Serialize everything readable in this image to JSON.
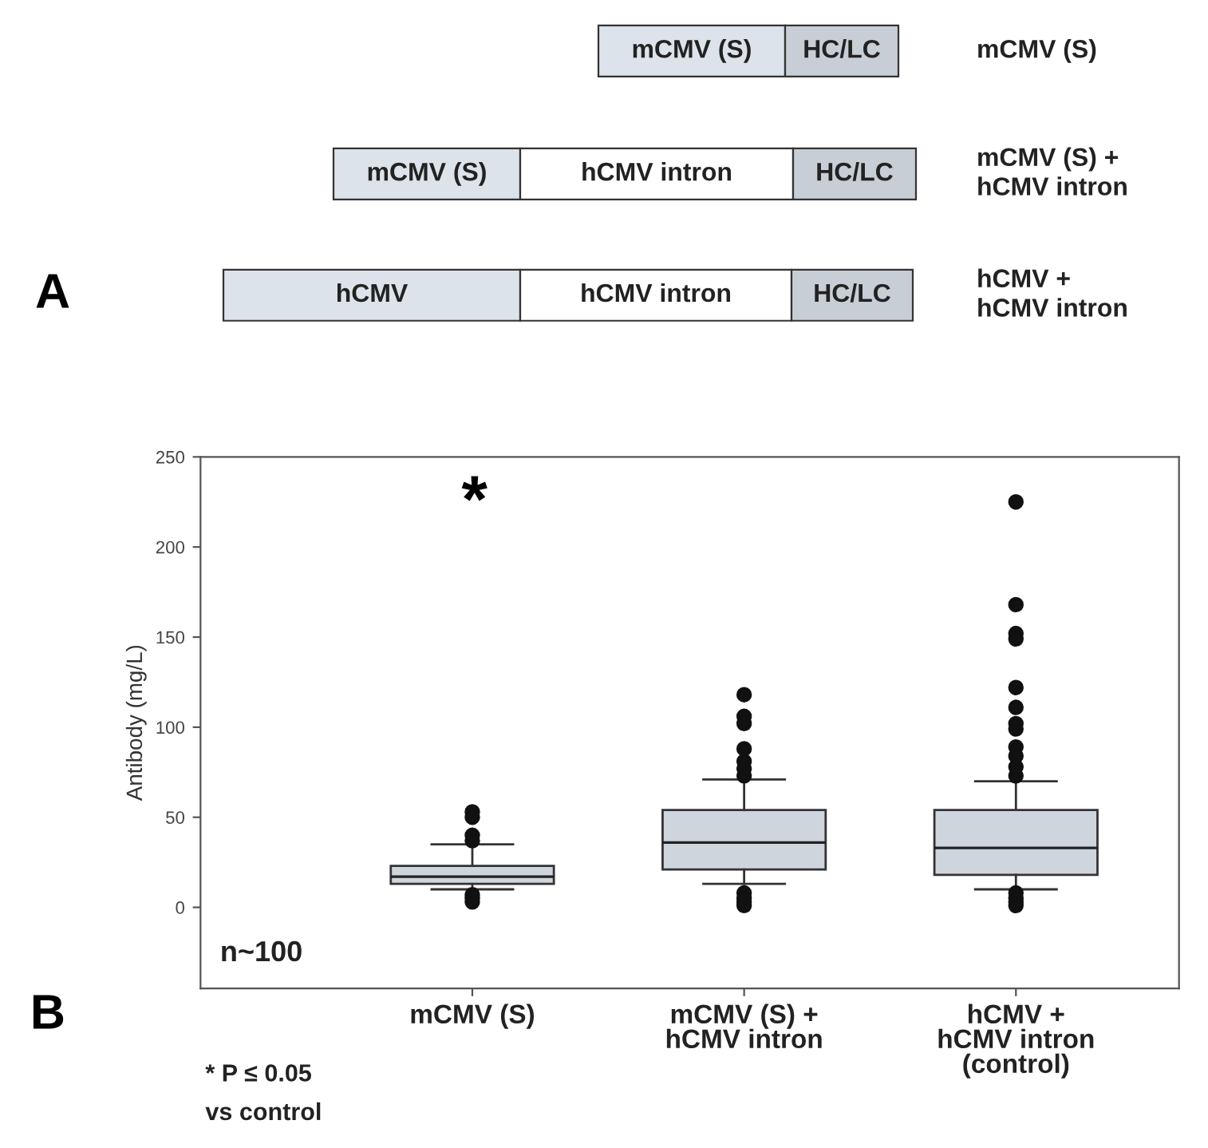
{
  "chart_data": [
    {
      "type": "other",
      "title": "A",
      "categories": [
        "mCMV (S)",
        "mCMV (S) +\nhCMV intron",
        "hCMV +\nhCMV intron"
      ],
      "annotations": [
        "mCMV (S)",
        "HC/LC",
        "mCMV (S)",
        "hCMV intron",
        "HC/LC",
        "hCMV",
        "hCMV intron",
        "HC/LC"
      ]
    },
    {
      "type": "box",
      "title": "B",
      "ylabel": "Antibody (mg/L)",
      "categories": [
        "mCMV (S)",
        "mCMV (S) +\nhCMV intron",
        "hCMV +\nhCMV intron\n(control)"
      ],
      "color": "#cfd5dc",
      "boxes": [
        {
          "low": 10,
          "q1": 13,
          "median": 17,
          "q3": 23,
          "high": 35,
          "outliers": [
            53,
            50,
            40,
            37,
            7,
            5,
            3
          ]
        },
        {
          "low": 13,
          "q1": 21,
          "median": 36,
          "q3": 54,
          "high": 71,
          "outliers": [
            118,
            106,
            102,
            88,
            81,
            77,
            73,
            8,
            5,
            3,
            1
          ]
        },
        {
          "low": 10,
          "q1": 18,
          "median": 33,
          "q3": 54,
          "high": 70,
          "outliers": [
            225,
            168,
            152,
            149,
            122,
            111,
            102,
            99,
            89,
            84,
            78,
            73,
            8,
            5,
            3,
            1
          ]
        }
      ],
      "ylim": [
        -45,
        250
      ],
      "yticks": [
        0,
        50,
        100,
        150,
        200,
        250
      ],
      "grid": false,
      "legend": false,
      "annotations": [
        "*",
        "n~100",
        "* P ≤ 0.05\nvs control"
      ]
    }
  ]
}
